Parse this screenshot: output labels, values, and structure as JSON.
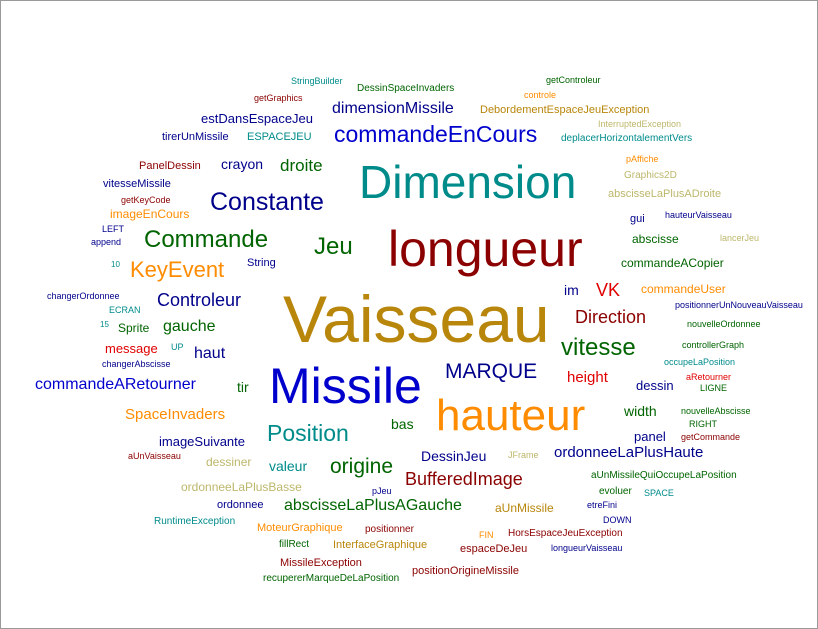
{
  "palette": {
    "gold": "#b8860b",
    "navy": "#00008b",
    "darkred": "#8b0000",
    "teal": "#008b8b",
    "green": "#006400",
    "orange": "#ff8c00",
    "blue": "#0000cd",
    "red": "#e00000",
    "khaki": "#bdb76b",
    "olive": "#556b2f"
  },
  "words": [
    {
      "text": "Vaisseau",
      "size": 66,
      "color": "gold"
    },
    {
      "text": "longueur",
      "size": 50,
      "color": "darkred"
    },
    {
      "text": "Missile",
      "size": 50,
      "color": "blue"
    },
    {
      "text": "Dimension",
      "size": 46,
      "color": "teal"
    },
    {
      "text": "hauteur",
      "size": 44,
      "color": "orange"
    },
    {
      "text": "commandeEnCours",
      "size": 23,
      "color": "blue"
    },
    {
      "text": "Constante",
      "size": 25,
      "color": "navy"
    },
    {
      "text": "Commande",
      "size": 24,
      "color": "green"
    },
    {
      "text": "Jeu",
      "size": 24,
      "color": "green"
    },
    {
      "text": "KeyEvent",
      "size": 22,
      "color": "orange"
    },
    {
      "text": "Position",
      "size": 23,
      "color": "teal"
    },
    {
      "text": "vitesse",
      "size": 24,
      "color": "green"
    },
    {
      "text": "MARQUE",
      "size": 21,
      "color": "navy"
    },
    {
      "text": "origine",
      "size": 21,
      "color": "green"
    },
    {
      "text": "dimensionMissile",
      "size": 16,
      "color": "navy"
    },
    {
      "text": "Controleur",
      "size": 18,
      "color": "navy"
    },
    {
      "text": "Direction",
      "size": 18,
      "color": "darkred"
    },
    {
      "text": "BufferedImage",
      "size": 18,
      "color": "darkred"
    },
    {
      "text": "commandeARetourner",
      "size": 16,
      "color": "blue"
    },
    {
      "text": "abscisseLaPlusAGauche",
      "size": 16,
      "color": "green"
    },
    {
      "text": "droite",
      "size": 17,
      "color": "green"
    },
    {
      "text": "gauche",
      "size": 16,
      "color": "green"
    },
    {
      "text": "haut",
      "size": 16,
      "color": "navy"
    },
    {
      "text": "VK",
      "size": 18,
      "color": "red"
    },
    {
      "text": "height",
      "size": 15,
      "color": "red"
    },
    {
      "text": "ordonneeLaPlusHaute",
      "size": 15,
      "color": "navy"
    },
    {
      "text": "DessinJeu",
      "size": 14,
      "color": "navy"
    },
    {
      "text": "SpaceInvaders",
      "size": 15,
      "color": "orange"
    },
    {
      "text": "crayon",
      "size": 14,
      "color": "navy"
    },
    {
      "text": "estDansEspaceJeu",
      "size": 13,
      "color": "navy"
    },
    {
      "text": "imageEnCours",
      "size": 12,
      "color": "orange"
    },
    {
      "text": "valeur",
      "size": 14,
      "color": "teal"
    },
    {
      "text": "width",
      "size": 14,
      "color": "green"
    },
    {
      "text": "panel",
      "size": 13,
      "color": "navy"
    },
    {
      "text": "tir",
      "size": 14,
      "color": "green"
    },
    {
      "text": "bas",
      "size": 14,
      "color": "green"
    },
    {
      "text": "im",
      "size": 14,
      "color": "navy"
    },
    {
      "text": "dessin",
      "size": 13,
      "color": "navy"
    },
    {
      "text": "imageSuivante",
      "size": 13,
      "color": "navy"
    },
    {
      "text": "message",
      "size": 13,
      "color": "red"
    },
    {
      "text": "Sprite",
      "size": 12,
      "color": "green"
    },
    {
      "text": "commandeACopier",
      "size": 12,
      "color": "green"
    },
    {
      "text": "commandeUser",
      "size": 12,
      "color": "orange"
    },
    {
      "text": "abscisse",
      "size": 12,
      "color": "green"
    },
    {
      "text": "aUnMissile",
      "size": 12,
      "color": "gold"
    },
    {
      "text": "ordonnee",
      "size": 11,
      "color": "navy"
    },
    {
      "text": "espaceDeJeu",
      "size": 11,
      "color": "darkred"
    },
    {
      "text": "positionOrigineMissile",
      "size": 11,
      "color": "darkred"
    },
    {
      "text": "dessiner",
      "size": 12,
      "color": "khaki"
    },
    {
      "text": "ordonneeLaPlusBasse",
      "size": 12,
      "color": "khaki"
    },
    {
      "text": "InterfaceGraphique",
      "size": 11,
      "color": "gold"
    },
    {
      "text": "MoteurGraphique",
      "size": 11,
      "color": "orange"
    },
    {
      "text": "MissileException",
      "size": 11,
      "color": "darkred"
    },
    {
      "text": "ESPACEJEU",
      "size": 11,
      "color": "teal"
    },
    {
      "text": "tirerUnMissile",
      "size": 11,
      "color": "navy"
    },
    {
      "text": "DebordementEspaceJeuException",
      "size": 11,
      "color": "gold"
    },
    {
      "text": "DessinSpaceInvaders",
      "size": 10,
      "color": "green"
    },
    {
      "text": "PanelDessin",
      "size": 11,
      "color": "darkred"
    },
    {
      "text": "vitesseMissile",
      "size": 11,
      "color": "navy"
    },
    {
      "text": "String",
      "size": 11,
      "color": "navy"
    },
    {
      "text": "getGraphics",
      "size": 9,
      "color": "darkred"
    },
    {
      "text": "StringBuilder",
      "size": 9,
      "color": "teal"
    },
    {
      "text": "getControleur",
      "size": 9,
      "color": "green"
    },
    {
      "text": "controle",
      "size": 9,
      "color": "orange"
    },
    {
      "text": "InterruptedException",
      "size": 9,
      "color": "khaki"
    },
    {
      "text": "deplacerHorizontalementVers",
      "size": 10,
      "color": "teal"
    },
    {
      "text": "pAffiche",
      "size": 9,
      "color": "orange"
    },
    {
      "text": "Graphics2D",
      "size": 10,
      "color": "khaki"
    },
    {
      "text": "abscisseLaPlusADroite",
      "size": 11,
      "color": "khaki"
    },
    {
      "text": "gui",
      "size": 11,
      "color": "navy"
    },
    {
      "text": "hauteurVaisseau",
      "size": 9,
      "color": "navy"
    },
    {
      "text": "lancerJeu",
      "size": 9,
      "color": "khaki"
    },
    {
      "text": "getKeyCode",
      "size": 9,
      "color": "darkred"
    },
    {
      "text": "LEFT",
      "size": 9,
      "color": "navy"
    },
    {
      "text": "append",
      "size": 9,
      "color": "navy"
    },
    {
      "text": "10",
      "size": 8,
      "color": "teal"
    },
    {
      "text": "changerOrdonnee",
      "size": 9,
      "color": "navy"
    },
    {
      "text": "ECRAN",
      "size": 9,
      "color": "teal"
    },
    {
      "text": "15",
      "size": 8,
      "color": "teal"
    },
    {
      "text": "UP",
      "size": 9,
      "color": "teal"
    },
    {
      "text": "changerAbscisse",
      "size": 9,
      "color": "navy"
    },
    {
      "text": "positionnerUnNouveauVaisseau",
      "size": 9,
      "color": "navy"
    },
    {
      "text": "nouvelleOrdonnee",
      "size": 9,
      "color": "green"
    },
    {
      "text": "controllerGraph",
      "size": 9,
      "color": "green"
    },
    {
      "text": "occupeLaPosition",
      "size": 9,
      "color": "teal"
    },
    {
      "text": "aRetourner",
      "size": 9,
      "color": "red"
    },
    {
      "text": "LIGNE",
      "size": 9,
      "color": "green"
    },
    {
      "text": "nouvelleAbscisse",
      "size": 9,
      "color": "green"
    },
    {
      "text": "RIGHT",
      "size": 9,
      "color": "green"
    },
    {
      "text": "getCommande",
      "size": 9,
      "color": "darkred"
    },
    {
      "text": "aUnVaisseau",
      "size": 9,
      "color": "darkred"
    },
    {
      "text": "JFrame",
      "size": 9,
      "color": "khaki"
    },
    {
      "text": "aUnMissileQuiOccupeLaPosition",
      "size": 10,
      "color": "green"
    },
    {
      "text": "evoluer",
      "size": 10,
      "color": "green"
    },
    {
      "text": "SPACE",
      "size": 9,
      "color": "teal"
    },
    {
      "text": "pJeu",
      "size": 9,
      "color": "navy"
    },
    {
      "text": "etreFini",
      "size": 9,
      "color": "navy"
    },
    {
      "text": "RuntimeException",
      "size": 10,
      "color": "teal"
    },
    {
      "text": "positionner",
      "size": 10,
      "color": "darkred"
    },
    {
      "text": "DOWN",
      "size": 9,
      "color": "navy"
    },
    {
      "text": "FIN",
      "size": 9,
      "color": "orange"
    },
    {
      "text": "HorsEspaceJeuException",
      "size": 10,
      "color": "darkred"
    },
    {
      "text": "fillRect",
      "size": 10,
      "color": "green"
    },
    {
      "text": "longueurVaisseau",
      "size": 9,
      "color": "navy"
    },
    {
      "text": "recupererMarqueDeLaPosition",
      "size": 10,
      "color": "green"
    }
  ]
}
